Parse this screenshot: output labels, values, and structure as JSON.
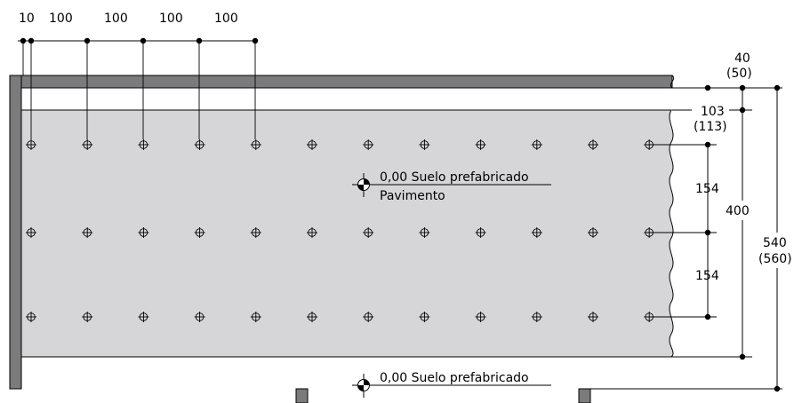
{
  "dimensions": {
    "top": [
      "10",
      "100",
      "100",
      "100",
      "100"
    ],
    "right_gap": {
      "main": "40",
      "alt": "(50)"
    },
    "offset": {
      "main": "103",
      "alt": "(113)"
    },
    "spacing": [
      "154",
      "154"
    ],
    "screed_height": "400",
    "total_height": {
      "main": "540",
      "alt": "(560)"
    }
  },
  "levels": {
    "upper": {
      "line1": "0,00 Suelo prefabricado",
      "line2": "Pavimento"
    },
    "lower": {
      "line1": "0,00 Suelo prefabricado"
    }
  },
  "colors": {
    "screed_fill": "#d6d6d8",
    "wall_fill": "#7b7b7d",
    "line": "#000000"
  }
}
